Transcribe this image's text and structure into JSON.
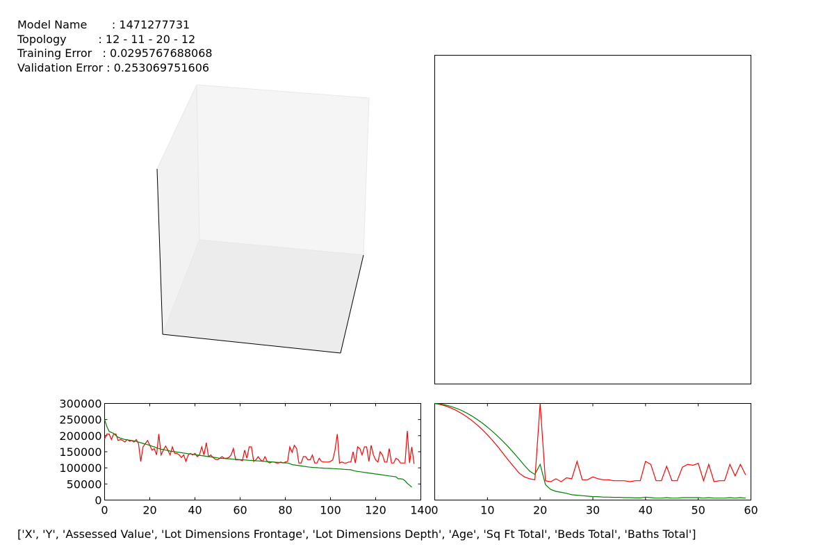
{
  "info": {
    "model_name": "Model Name       : 1471277731",
    "topology": "Topology         : 12 - 11 - 20 - 12",
    "training_error": "Training Error   : 0.0295767688068",
    "validation_error": "Validation Error : 0.253069751606"
  },
  "footer_text": "['X', 'Y', 'Assessed Value', 'Lot Dimensions Frontage', 'Lot Dimensions Depth', 'Age', 'Sq Ft Total', 'Beds Total', 'Baths Total']",
  "chart_data": [
    {
      "type": "3d-axes",
      "panel": "top-left",
      "title": "",
      "data": []
    },
    {
      "type": "empty",
      "panel": "top-right",
      "title": "",
      "data": []
    },
    {
      "type": "line",
      "panel": "bottom-left",
      "xlim": [
        0,
        140
      ],
      "ylim": [
        0,
        300000
      ],
      "x_ticks": [
        "0",
        "20",
        "40",
        "60",
        "80",
        "100",
        "120",
        "140"
      ],
      "y_ticks": [
        "0",
        "50000",
        "100000",
        "150000",
        "200000",
        "250000",
        "300000"
      ],
      "series": [
        {
          "color": "#ff0000",
          "values": [
            190000,
            205000,
            205000,
            188000,
            205000,
            205000,
            185000,
            188000,
            185000,
            180000,
            188000,
            183000,
            185000,
            180000,
            188000,
            175000,
            120000,
            165000,
            175000,
            185000,
            170000,
            155000,
            160000,
            140000,
            205000,
            140000,
            155000,
            168000,
            155000,
            140000,
            165000,
            145000,
            145000,
            140000,
            132000,
            140000,
            120000,
            140000,
            145000,
            140000,
            145000,
            135000,
            140000,
            165000,
            140000,
            178000,
            135000,
            140000,
            132000,
            127000,
            125000,
            130000,
            135000,
            130000,
            130000,
            132000,
            140000,
            160000,
            125000,
            125000,
            125000,
            122000,
            155000,
            130000,
            165000,
            165000,
            120000,
            125000,
            135000,
            125000,
            120000,
            135000,
            120000,
            115000,
            118000,
            118000,
            115000,
            115000,
            118000,
            115000,
            118000,
            120000,
            165000,
            148000,
            170000,
            160000,
            115000,
            115000,
            135000,
            135000,
            125000,
            125000,
            140000,
            115000,
            115000,
            130000,
            120000,
            118000,
            118000,
            118000,
            120000,
            125000,
            155000,
            205000,
            115000,
            118000,
            115000,
            115000,
            118000,
            118000,
            150000,
            115000,
            165000,
            160000,
            140000,
            165000,
            165000,
            120000,
            170000,
            140000,
            125000,
            118000,
            150000,
            140000,
            118000,
            118000,
            160000,
            115000,
            115000,
            130000,
            125000,
            115000,
            115000,
            115000,
            215000,
            115000,
            165000,
            112000
          ],
          "name": ""
        },
        {
          "color": "#008000",
          "values": [
            250000,
            228000,
            213000,
            210000,
            207000,
            200000,
            195000,
            192000,
            190000,
            188000,
            187000,
            186000,
            185000,
            184000,
            182000,
            180000,
            178000,
            176000,
            174000,
            172000,
            170000,
            167000,
            165000,
            162000,
            160000,
            158000,
            157000,
            155000,
            154000,
            152000,
            151000,
            150000,
            149000,
            148000,
            147000,
            146000,
            145000,
            144000,
            143000,
            142000,
            141000,
            140000,
            139000,
            138000,
            137000,
            136000,
            135000,
            134000,
            133000,
            132000,
            131000,
            130000,
            129500,
            129000,
            128500,
            128000,
            127500,
            127000,
            126500,
            126000,
            125500,
            125000,
            124500,
            124000,
            123500,
            123000,
            122500,
            122000,
            121500,
            121000,
            120500,
            120000,
            119500,
            119000,
            118500,
            118000,
            117500,
            117000,
            116500,
            116000,
            115500,
            115000,
            113000,
            110000,
            109000,
            108000,
            107000,
            106000,
            105000,
            104000,
            103000,
            102000,
            101500,
            101000,
            100500,
            100000,
            99500,
            99000,
            98700,
            98400,
            98100,
            97800,
            97500,
            97000,
            96500,
            96000,
            95500,
            95000,
            94500,
            94000,
            92000,
            90000,
            89000,
            88000,
            87000,
            86000,
            85000,
            84000,
            83000,
            82000,
            81000,
            80000,
            79000,
            78000,
            77000,
            76000,
            75000,
            74000,
            73000,
            72000,
            66000,
            66000,
            65000,
            60000,
            52000,
            46000,
            40000
          ],
          "name": ""
        }
      ]
    },
    {
      "type": "line",
      "panel": "bottom-right",
      "xlim": [
        0,
        60
      ],
      "x_ticks": [
        "0",
        "10",
        "20",
        "30",
        "40",
        "50",
        "60"
      ],
      "y_ticks": [],
      "ylim": [
        0,
        1
      ],
      "series": [
        {
          "color": "#ff0000",
          "values": [
            1.0,
            0.99,
            0.975,
            0.955,
            0.93,
            0.9,
            0.865,
            0.825,
            0.78,
            0.73,
            0.675,
            0.615,
            0.55,
            0.48,
            0.41,
            0.345,
            0.28,
            0.24,
            0.22,
            0.21,
            1.0,
            0.2,
            0.19,
            0.22,
            0.19,
            0.23,
            0.22,
            0.4,
            0.21,
            0.21,
            0.24,
            0.22,
            0.21,
            0.21,
            0.2,
            0.2,
            0.2,
            0.19,
            0.2,
            0.2,
            0.4,
            0.37,
            0.2,
            0.2,
            0.35,
            0.2,
            0.2,
            0.34,
            0.37,
            0.36,
            0.38,
            0.2,
            0.37,
            0.19,
            0.2,
            0.2,
            0.37,
            0.25,
            0.37,
            0.26
          ],
          "name": ""
        },
        {
          "color": "#008000",
          "values": [
            1.0,
            0.995,
            0.985,
            0.97,
            0.952,
            0.93,
            0.903,
            0.872,
            0.837,
            0.798,
            0.755,
            0.708,
            0.658,
            0.605,
            0.548,
            0.488,
            0.425,
            0.36,
            0.3,
            0.265,
            0.37,
            0.16,
            0.11,
            0.09,
            0.08,
            0.07,
            0.055,
            0.05,
            0.045,
            0.04,
            0.035,
            0.035,
            0.03,
            0.03,
            0.028,
            0.028,
            0.025,
            0.025,
            0.022,
            0.022,
            0.03,
            0.025,
            0.02,
            0.02,
            0.025,
            0.02,
            0.02,
            0.025,
            0.025,
            0.025,
            0.025,
            0.02,
            0.025,
            0.02,
            0.02,
            0.02,
            0.025,
            0.02,
            0.025,
            0.02
          ],
          "name": ""
        }
      ]
    }
  ]
}
